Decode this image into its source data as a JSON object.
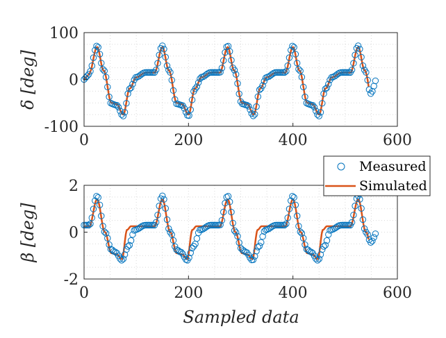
{
  "colors": {
    "measured": "#0072BD",
    "simulated": "#D95319",
    "axis": "#262626",
    "grid": "#d9d9d9"
  },
  "chart_data": [
    {
      "type": "scatter+line",
      "panel": "top",
      "ylabel": "δ [deg]",
      "xlabel": "",
      "xlim": [
        0,
        600
      ],
      "ylim": [
        -100,
        100
      ],
      "xticks": [
        "0",
        "200",
        "400",
        "600"
      ],
      "yticks": [
        "100",
        "0",
        "-100"
      ],
      "grid": "dotted",
      "series": [
        {
          "name": "Measured",
          "style": "open-circle",
          "length": 560,
          "period_samples": 125,
          "amplitude_peak": 75,
          "amplitude_trough": -78,
          "shoulder_high": 15,
          "shoulder_low": -55,
          "first_peak_sample": 45
        },
        {
          "name": "Simulated",
          "style": "line",
          "length": 545,
          "period_samples": 125,
          "amplitude_peak": 72,
          "amplitude_trough": -75
        }
      ]
    },
    {
      "type": "scatter+line",
      "panel": "bottom",
      "ylabel": "β [deg]",
      "xlabel": "Sampled data",
      "xlim": [
        0,
        600
      ],
      "ylim": [
        -2,
        2
      ],
      "xticks": [
        "0",
        "200",
        "400",
        "600"
      ],
      "yticks": [
        "2",
        "0",
        "-2"
      ],
      "grid": "dotted",
      "series": [
        {
          "name": "Measured",
          "style": "open-circle",
          "length": 560,
          "period_samples": 125,
          "amplitude_peak": 1.6,
          "amplitude_trough": -1.2,
          "shoulder_high": 0.3,
          "shoulder_low": -0.8
        },
        {
          "name": "Simulated",
          "style": "line",
          "length": 545,
          "period_samples": 125,
          "amplitude_peak": 1.4,
          "amplitude_trough": -1.15,
          "shoulder_high": 0.25,
          "shoulder_low": -0.9
        }
      ]
    }
  ],
  "legend": {
    "placement": "right-middle",
    "items": [
      "Measured",
      "Simulated"
    ]
  }
}
